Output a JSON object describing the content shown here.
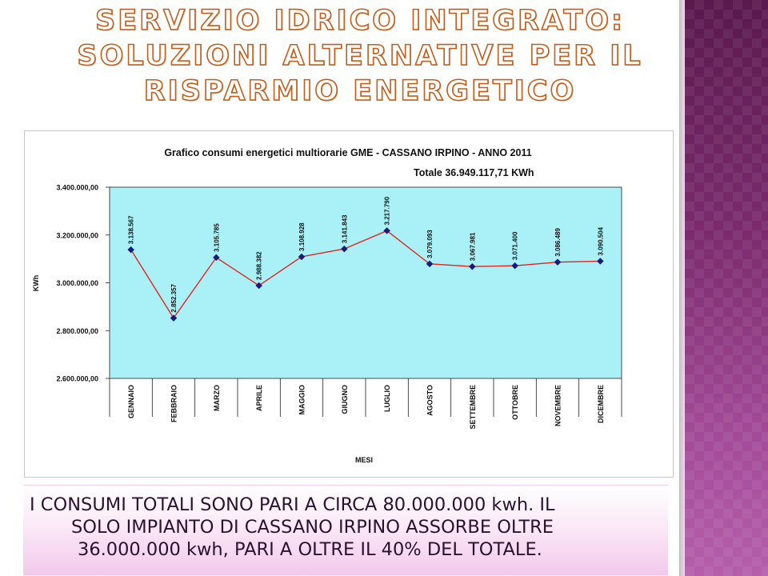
{
  "slide": {
    "title_lines": [
      "SERVIZIO IDRICO INTEGRATO:",
      "SOLUZIONI ALTERNATIVE PER IL",
      "RISPARMIO ENERGETICO"
    ],
    "body_lines": [
      "I CONSUMI TOTALI SONO PARI A CIRCA 80.000.000 kwh. IL",
      "SOLO IMPIANTO DI CASSANO IRPINO ASSORBE OLTRE",
      "36.000.000 kwh, PARI A OLTRE IL 40% DEL TOTALE."
    ],
    "accent_colors": {
      "title_outline": "#c25f1c",
      "sidebar": "#7b2b6d",
      "plot_bg": "#a9f0f7",
      "line": "#e0251f",
      "marker": "#1a1a7a"
    }
  },
  "chart_data": {
    "type": "line",
    "title": "Grafico consumi energetici multiorarie GME - CASSANO IRPINO - ANNO 2011",
    "subtitle": "Totale 36.949.117,71 KWh",
    "xlabel": "MESI",
    "ylabel": "KWh",
    "categories": [
      "GENNAIO",
      "FEBBRAIO",
      "MARZO",
      "APRILE",
      "MAGGIO",
      "GIUGNO",
      "LUGLIO",
      "AGOSTO",
      "SETTEMBRE",
      "OTTOBRE",
      "NOVEMBRE",
      "DICEMBRE"
    ],
    "values": [
      3138567,
      2852357,
      3105785,
      2988382,
      3108928,
      3141843,
      3217790,
      3079093,
      3067981,
      3071400,
      3086489,
      3090504
    ],
    "data_labels": [
      "3.138.567",
      "2.852.357",
      "3.105.785",
      "2.988.382",
      "3.108.928",
      "3.141.843",
      "3.217.790",
      "3.079.093",
      "3.067.981",
      "3.071.400",
      "3.086.489",
      "3.090.504"
    ],
    "ylim": [
      2600000,
      3400000
    ],
    "y_ticks": [
      2600000,
      2800000,
      3000000,
      3200000,
      3400000
    ],
    "y_tick_labels": [
      "2.600.000,00",
      "2.800.000,00",
      "3.000.000,00",
      "3.200.000,00",
      "3.400.000,00"
    ],
    "grid": false,
    "legend": "none"
  }
}
